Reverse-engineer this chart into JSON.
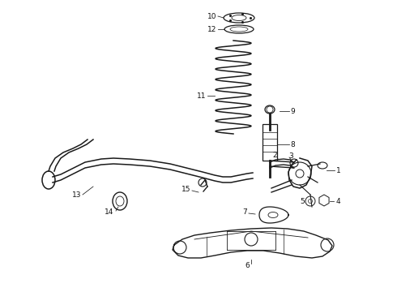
{
  "bg_color": "#ffffff",
  "line_color": "#1a1a1a",
  "label_color": "#111111",
  "label_fontsize": 6.5,
  "fig_width": 4.9,
  "fig_height": 3.6
}
